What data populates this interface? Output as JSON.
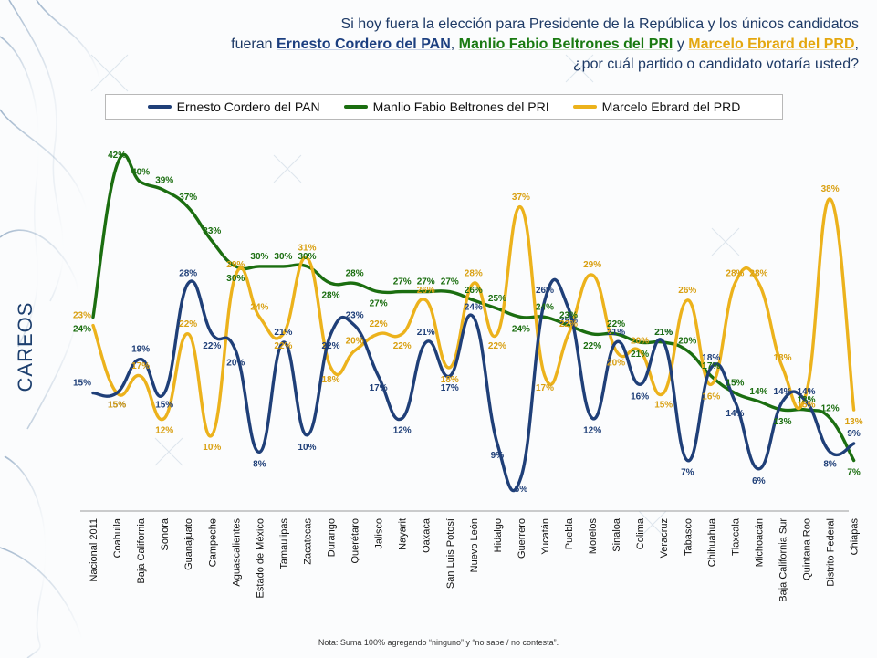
{
  "heading": {
    "line1": "Si hoy fuera la elección para Presidente de la República y los únicos candidatos",
    "line2_prefix": "fueran ",
    "pan_name": "Ernesto Cordero del PAN",
    "sep1": ", ",
    "pri_name": "Manlio Fabio Beltrones del PRI",
    "sep2": " y ",
    "prd_name": "Marcelo Ebrard del PRD",
    "line2_suffix": ",",
    "line3": "¿por cuál partido o candidato votaría usted?"
  },
  "side_title": "CAREOS",
  "footnote": "Nota: Suma 100%  agregando “ninguno” y “no sabe / no contesta”.",
  "colors": {
    "pan": "#1f3f78",
    "pri": "#1b6e10",
    "prd": "#ecb21c"
  },
  "chart_data": {
    "type": "line",
    "categories": [
      "Nacional 2011",
      "Coahuila",
      "Baja California",
      "Sonora",
      "Guanajuato",
      "Campeche",
      "Aguascalientes",
      "Estado de México",
      "Tamaulipas",
      "Zacatecas",
      "Durango",
      "Querétaro",
      "Jalisco",
      "Nayarit",
      "Oaxaca",
      "San Luis Potosí",
      "Nuevo León",
      "Hidalgo",
      "Guerrero",
      "Yucatán",
      "Puebla",
      "Morelos",
      "Sinaloa",
      "Colima",
      "Veracruz",
      "Tabasco",
      "Chihuahua",
      "Tlaxcala",
      "Michoacán",
      "Baja California Sur",
      "Quintana Roo",
      "Distrito Federal",
      "Chiapas"
    ],
    "series": [
      {
        "name": "Ernesto Cordero del PAN",
        "key": "pan",
        "values": [
          15,
          15,
          19,
          15,
          28,
          22,
          20,
          8,
          21,
          10,
          22,
          23,
          17,
          12,
          21,
          17,
          24,
          9,
          5,
          26,
          25,
          12,
          21,
          16,
          21,
          7,
          18,
          14,
          6,
          14,
          14,
          8,
          9
        ]
      },
      {
        "name": "Manlio Fabio Beltrones del PRI",
        "key": "pri",
        "values": [
          24,
          42,
          40,
          39,
          37,
          33,
          30,
          30,
          30,
          30,
          28,
          28,
          27,
          27,
          27,
          27,
          26,
          25,
          24,
          24,
          23,
          22,
          22,
          21,
          21,
          20,
          17,
          15,
          14,
          13,
          13,
          12,
          7
        ]
      },
      {
        "name": "Marcelo Ebrard del PRD",
        "key": "prd",
        "values": [
          23,
          15,
          17,
          12,
          22,
          10,
          29,
          24,
          22,
          31,
          18,
          20,
          22,
          22,
          26,
          18,
          28,
          22,
          37,
          17,
          22,
          29,
          20,
          20,
          15,
          26,
          16,
          28,
          28,
          18,
          15,
          38,
          13
        ]
      }
    ],
    "value_suffix": "%",
    "ylim": [
      0,
      45
    ],
    "legend_position": "top",
    "grid": false
  }
}
